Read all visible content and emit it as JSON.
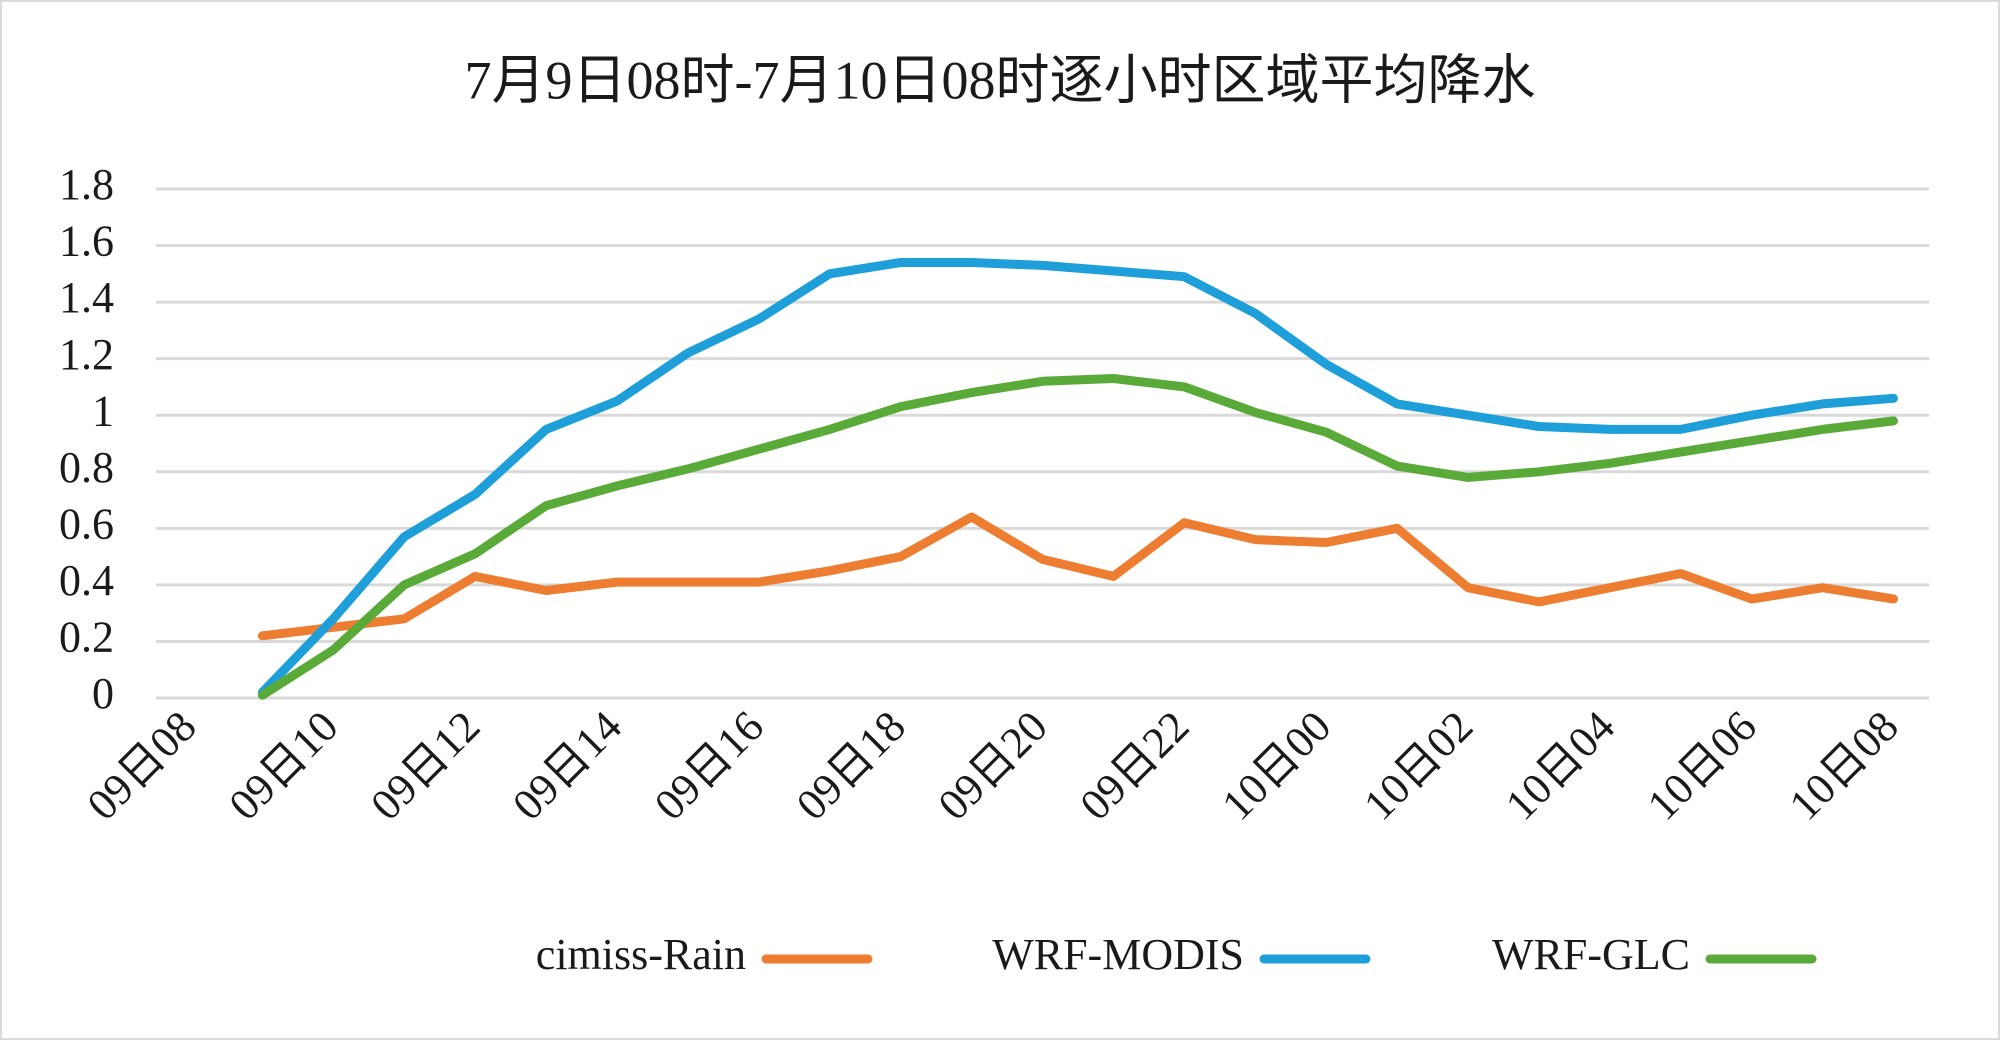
{
  "chart_data": {
    "type": "line",
    "title": "7月9日08时-7月10日08时逐小时区域平均降水",
    "categories": [
      "09日08",
      null,
      "09日10",
      null,
      "09日12",
      null,
      "09日14",
      null,
      "09日16",
      null,
      "09日18",
      null,
      "09日20",
      null,
      "09日22",
      null,
      "10日00",
      null,
      "10日02",
      null,
      "10日04",
      null,
      "10日06",
      null,
      "10日08"
    ],
    "series": [
      {
        "name": "cimiss-Rain",
        "color": "#ed7d31",
        "values": [
          null,
          0.22,
          0.25,
          0.28,
          0.43,
          0.38,
          0.41,
          0.41,
          0.41,
          0.45,
          0.5,
          0.64,
          0.49,
          0.43,
          0.62,
          0.56,
          0.55,
          0.6,
          0.39,
          0.34,
          0.39,
          0.44,
          0.35,
          0.39,
          0.35
        ]
      },
      {
        "name": "WRF-MODIS",
        "color": "#1e9fd9",
        "values": [
          null,
          0.02,
          0.28,
          0.57,
          0.72,
          0.95,
          1.05,
          1.22,
          1.34,
          1.5,
          1.54,
          1.54,
          1.53,
          1.51,
          1.49,
          1.36,
          1.18,
          1.04,
          1.0,
          0.96,
          0.95,
          0.95,
          1.0,
          1.04,
          1.06
        ]
      },
      {
        "name": "WRF-GLC",
        "color": "#5aaa3a",
        "values": [
          null,
          0.01,
          0.17,
          0.4,
          0.51,
          0.68,
          0.75,
          0.81,
          0.88,
          0.95,
          1.03,
          1.08,
          1.12,
          1.13,
          1.1,
          1.01,
          0.94,
          0.82,
          0.78,
          0.8,
          0.83,
          0.87,
          0.91,
          0.95,
          0.98
        ]
      }
    ],
    "ylim": [
      0,
      1.8
    ],
    "yticks": [
      0,
      0.2,
      0.4,
      0.6,
      0.8,
      1,
      1.2,
      1.4,
      1.6,
      1.8
    ],
    "grid": true,
    "legend": "bottom"
  }
}
